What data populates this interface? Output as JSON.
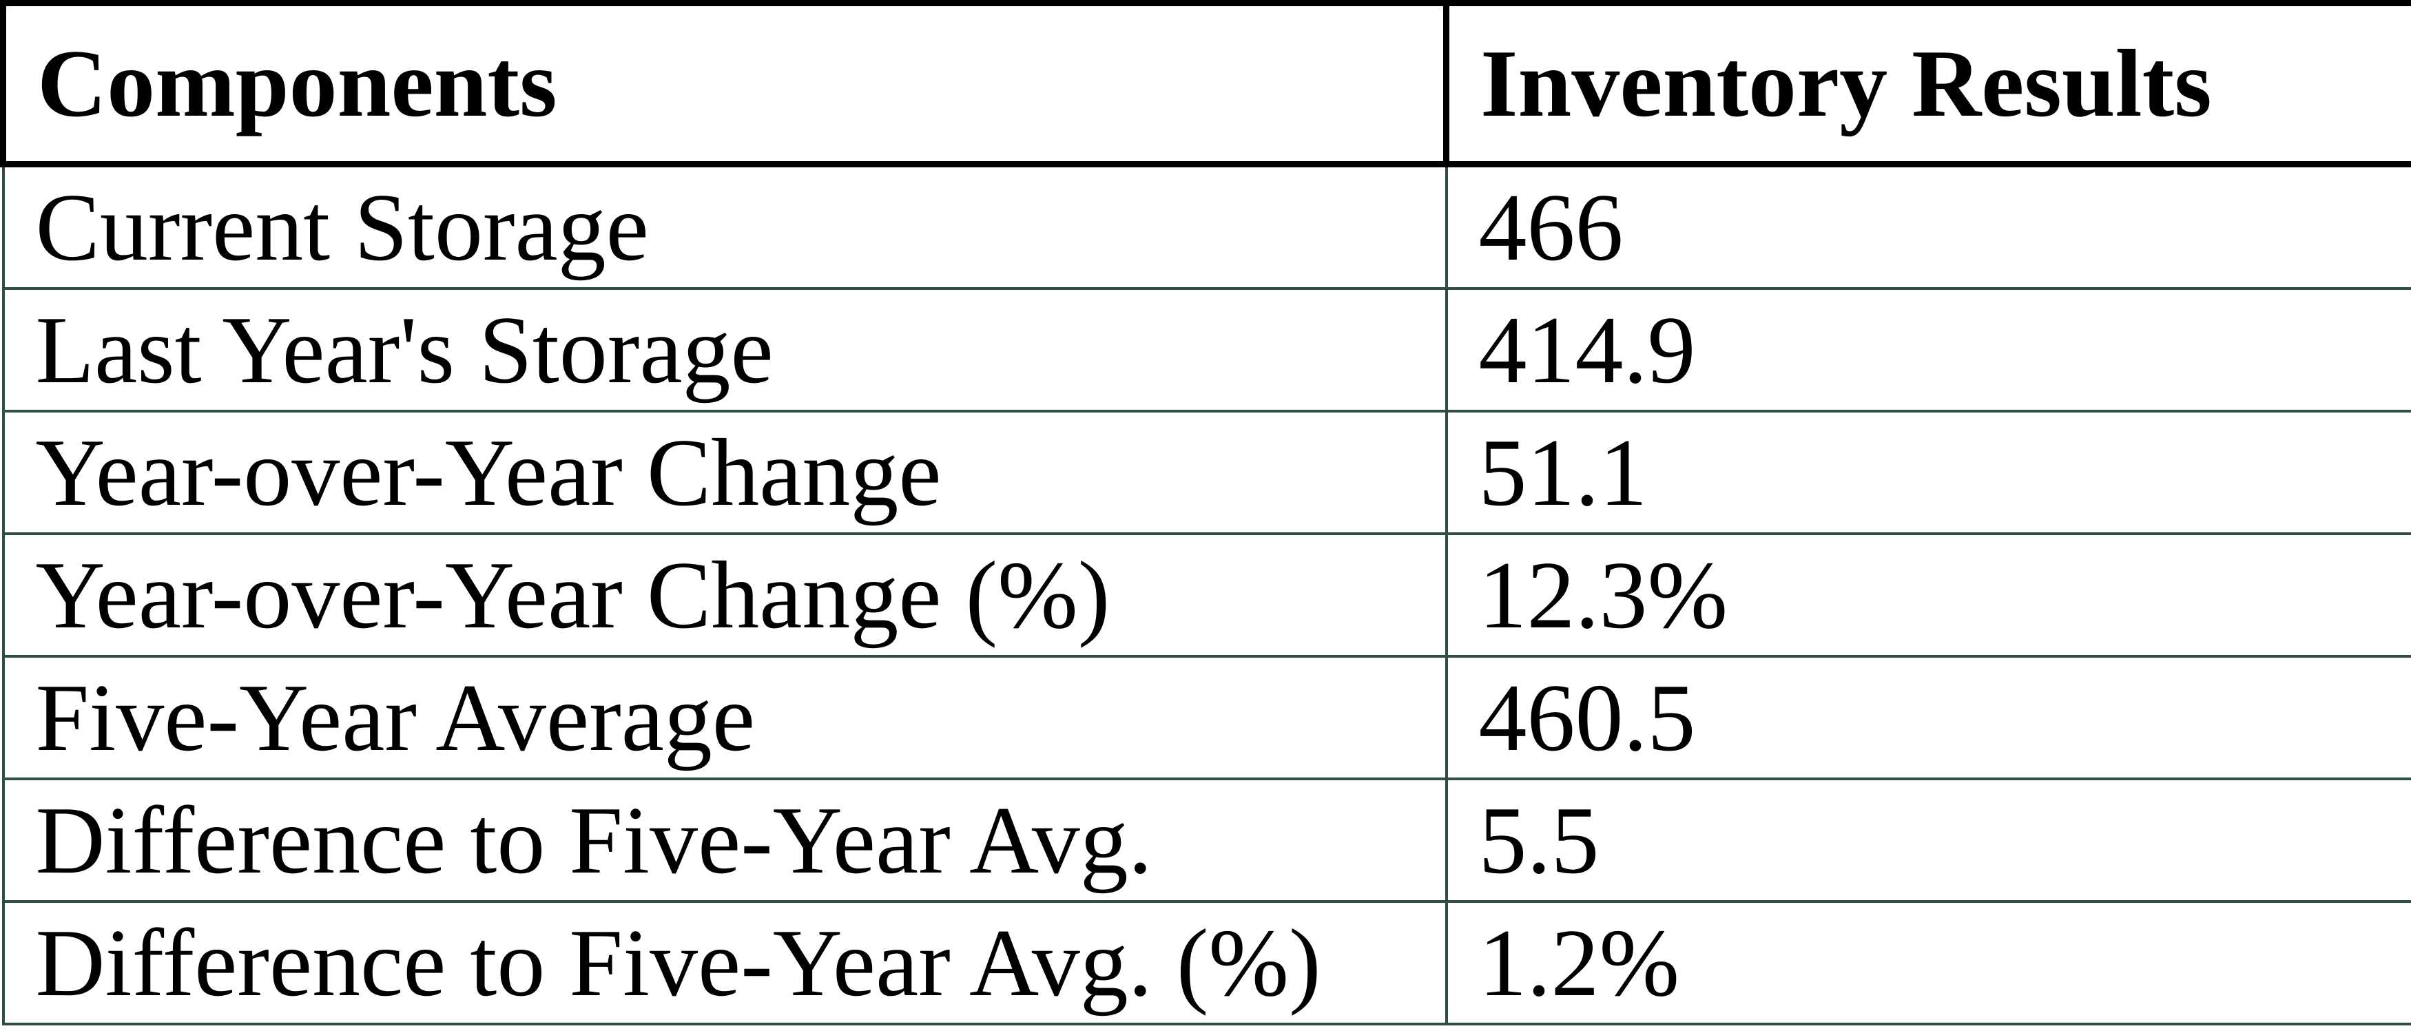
{
  "table": {
    "columns": [
      {
        "label": "Components"
      },
      {
        "label": "Inventory Results"
      }
    ],
    "rows": [
      {
        "label": "Current Storage",
        "value": "466"
      },
      {
        "label": "Last Year's Storage",
        "value": "414.9"
      },
      {
        "label": "Year-over-Year Change",
        "value": "51.1"
      },
      {
        "label": "Year-over-Year Change (%)",
        "value": "12.3%"
      },
      {
        "label": "Five-Year Average",
        "value": "460.5"
      },
      {
        "label": "Difference to Five-Year Avg.",
        "value": "5.5"
      },
      {
        "label": "Difference to Five-Year Avg. (%)",
        "value": "1.2%"
      }
    ]
  },
  "colors": {
    "header_border": "#000000",
    "body_border": "#2F4C47",
    "text": "#000000",
    "background": "#FFFFFF"
  },
  "chart_data": {
    "type": "table",
    "title": "Inventory Results",
    "categories": [
      "Current Storage",
      "Last Year's Storage",
      "Year-over-Year Change",
      "Year-over-Year Change (%)",
      "Five-Year Average",
      "Difference to Five-Year Avg.",
      "Difference to Five-Year Avg. (%)"
    ],
    "values": [
      466,
      414.9,
      51.1,
      "12.3%",
      460.5,
      5.5,
      "1.2%"
    ]
  }
}
